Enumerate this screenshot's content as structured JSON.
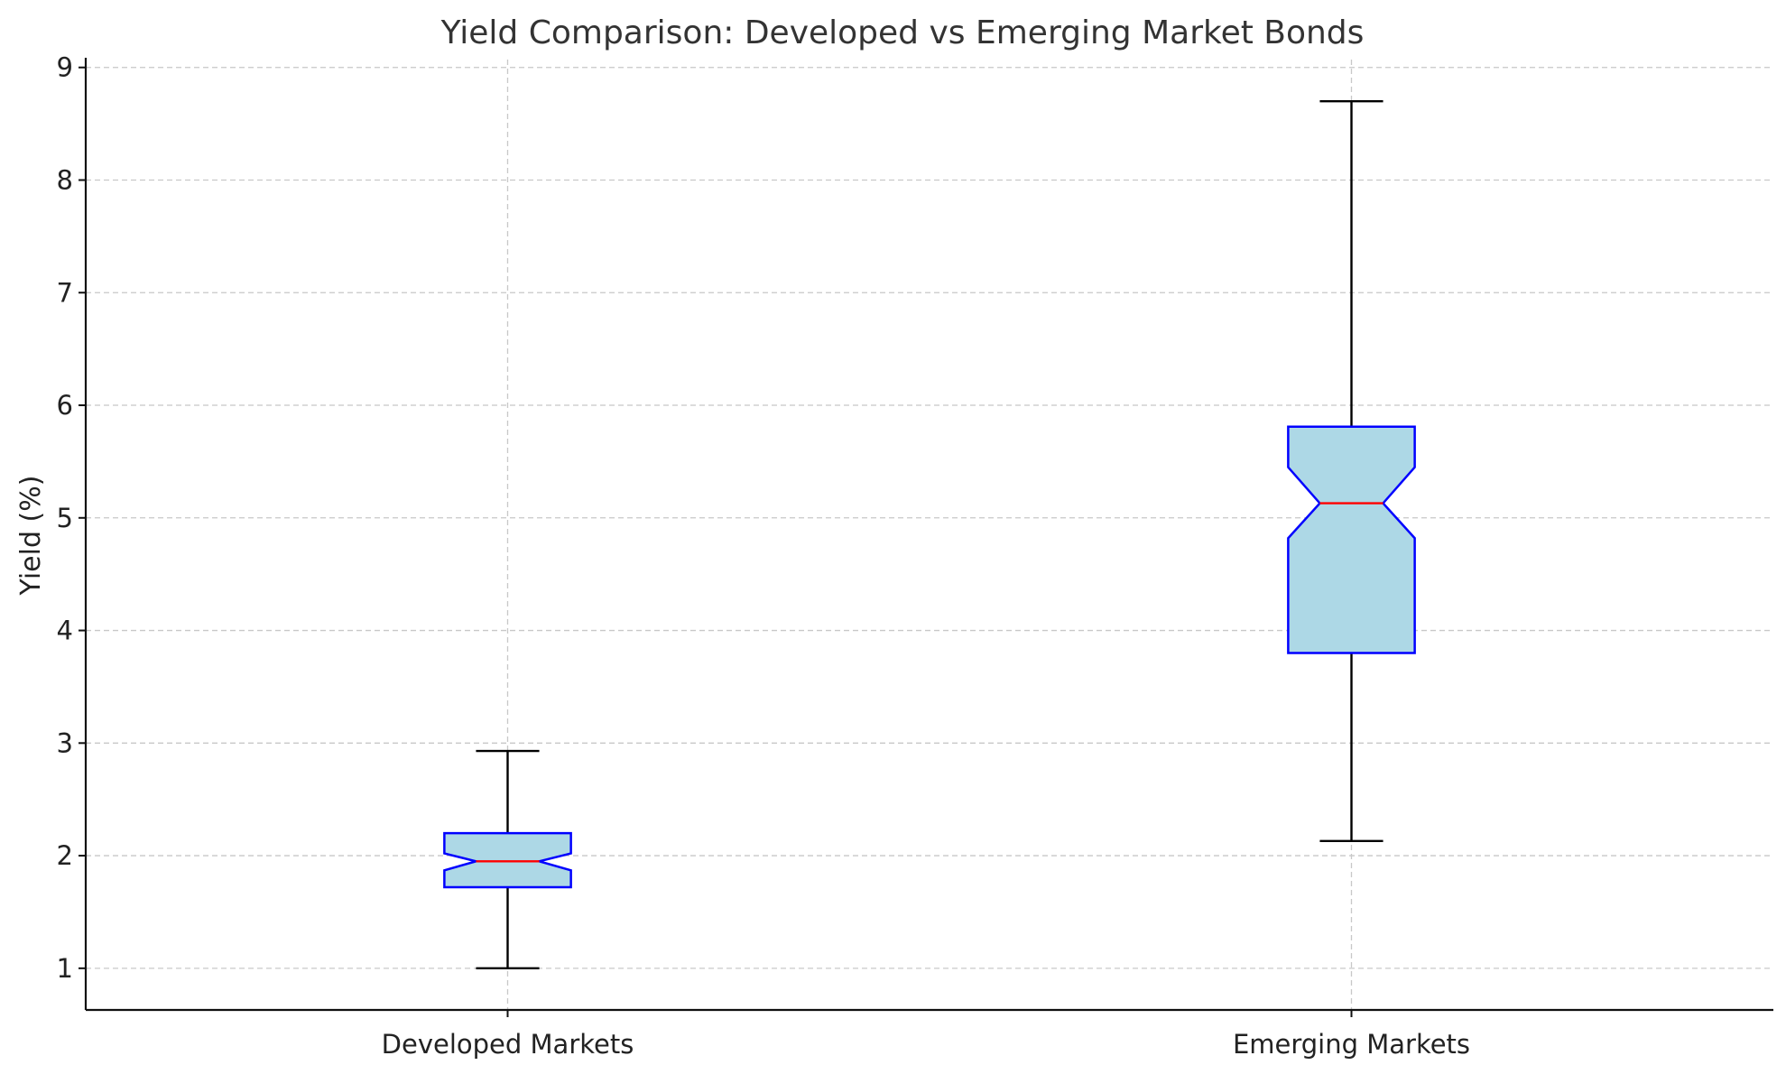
{
  "chart_data": {
    "type": "box",
    "title": "Yield Comparison: Developed vs Emerging Market Bonds",
    "xlabel": "",
    "ylabel": "Yield (%)",
    "ylim": [
      0.63,
      9.07
    ],
    "yticks": [
      "1",
      "2",
      "3",
      "4",
      "5",
      "6",
      "7",
      "8",
      "9"
    ],
    "notch": true,
    "grid": true,
    "categories": [
      "Developed Markets",
      "Emerging Markets"
    ],
    "boxes": [
      {
        "label": "Developed Markets",
        "whisker_low": 1.0,
        "q1": 1.72,
        "median": 1.95,
        "q3": 2.2,
        "whisker_high": 2.93,
        "notch_low": 1.87,
        "notch_high": 2.02
      },
      {
        "label": "Emerging Markets",
        "whisker_low": 2.13,
        "q1": 3.8,
        "median": 5.13,
        "q3": 5.81,
        "whisker_high": 8.7,
        "notch_low": 4.82,
        "notch_high": 5.45
      }
    ],
    "colors": {
      "box_fill": "#add8e6",
      "box_edge": "#0000ff",
      "median": "#ff0000",
      "whisker": "#000000",
      "grid": "#c8c8c8"
    }
  }
}
